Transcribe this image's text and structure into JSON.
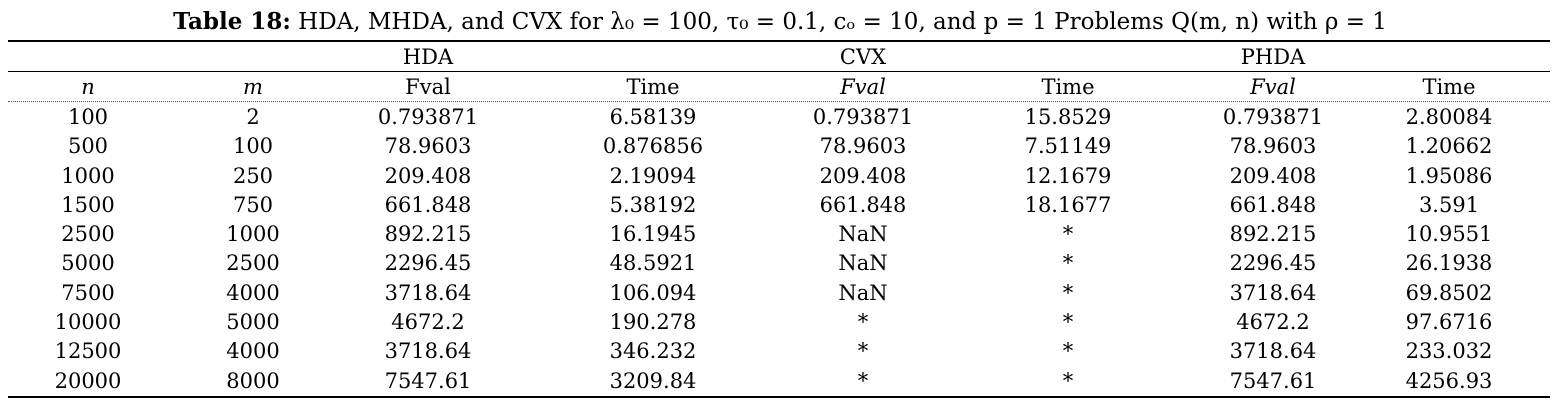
{
  "caption": {
    "label": "Table 18:",
    "text": "HDA, MHDA, and CVX for λ₀ = 100, τ₀ = 0.1,  cₒ = 10, and p = 1 Problems Q(m, n) with ρ = 1"
  },
  "groups": [
    "HDA",
    "CVX",
    "PHDA"
  ],
  "columns": [
    "n",
    "m",
    "Fval",
    "Time",
    "Fval",
    "Time",
    "Fval",
    "Time"
  ],
  "rows": [
    [
      "100",
      "2",
      "0.793871",
      "6.58139",
      "0.793871",
      "15.8529",
      "0.793871",
      "2.80084"
    ],
    [
      "500",
      "100",
      "78.9603",
      "0.876856",
      "78.9603",
      "7.51149",
      "78.9603",
      "1.20662"
    ],
    [
      "1000",
      "250",
      "209.408",
      "2.19094",
      "209.408",
      "12.1679",
      "209.408",
      "1.95086"
    ],
    [
      "1500",
      "750",
      "661.848",
      "5.38192",
      "661.848",
      "18.1677",
      "661.848",
      "3.591"
    ],
    [
      "2500",
      "1000",
      "892.215",
      "16.1945",
      "NaN",
      "*",
      "892.215",
      "10.9551"
    ],
    [
      "5000",
      "2500",
      "2296.45",
      "48.5921",
      "NaN",
      "*",
      "2296.45",
      "26.1938"
    ],
    [
      "7500",
      "4000",
      "3718.64",
      "106.094",
      "NaN",
      "*",
      "3718.64",
      "69.8502"
    ],
    [
      "10000",
      "5000",
      "4672.2",
      "190.278",
      "*",
      "*",
      "4672.2",
      "97.6716"
    ],
    [
      "12500",
      "4000",
      "3718.64",
      "346.232",
      "*",
      "*",
      "3718.64",
      "233.032"
    ],
    [
      "20000",
      "8000",
      "7547.61",
      "3209.84",
      "*",
      "*",
      "7547.61",
      "4256.93"
    ]
  ]
}
